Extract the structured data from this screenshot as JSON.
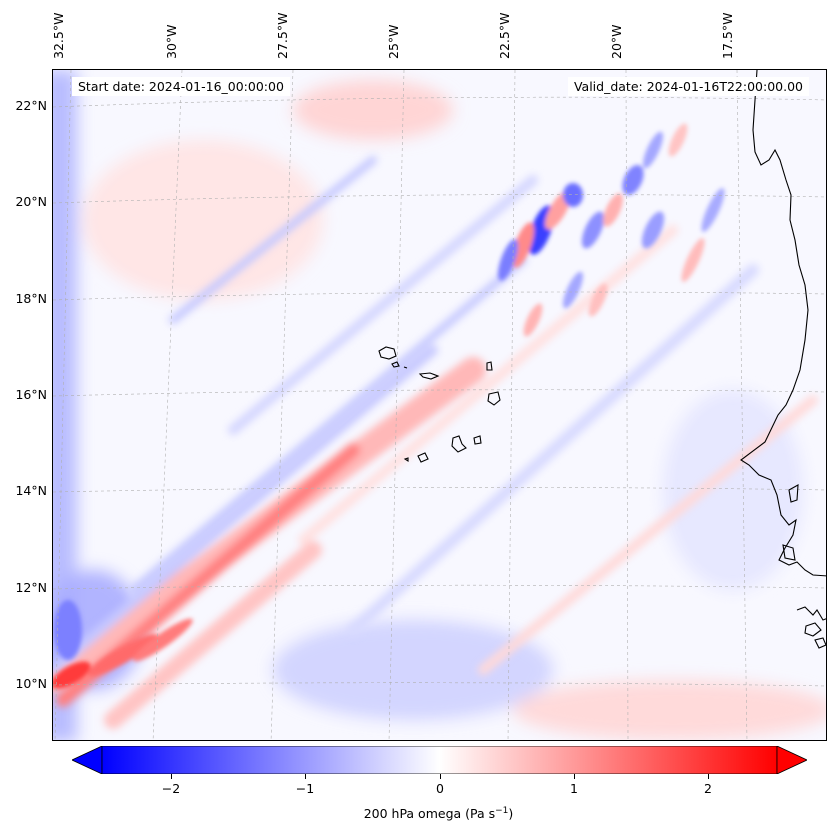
{
  "map": {
    "start_date": "Start date: 2024-01-16_00:00:00",
    "valid_date": "Valid_date: 2024-01-16T22:00:00.00",
    "lon_labels": [
      "32.5°W",
      "30°W",
      "27.5°W",
      "25°W",
      "22.5°W",
      "20°W",
      "17.5°W"
    ],
    "lat_labels": [
      "22°N",
      "20°N",
      "18°N",
      "16°N",
      "14°N",
      "12°N",
      "10°N"
    ],
    "colormap": "bwr",
    "colors": {
      "negative": "#0000ff",
      "zero": "#ffffff",
      "positive": "#ff0000"
    }
  },
  "colorbar": {
    "ticks": [
      "−2",
      "−1",
      "0",
      "1",
      "2"
    ],
    "range": [
      -2.5,
      2.5
    ],
    "extend": "both",
    "title_main": "200 hPa omega (Pa s",
    "title_sup": "−1",
    "title_end": ")"
  }
}
